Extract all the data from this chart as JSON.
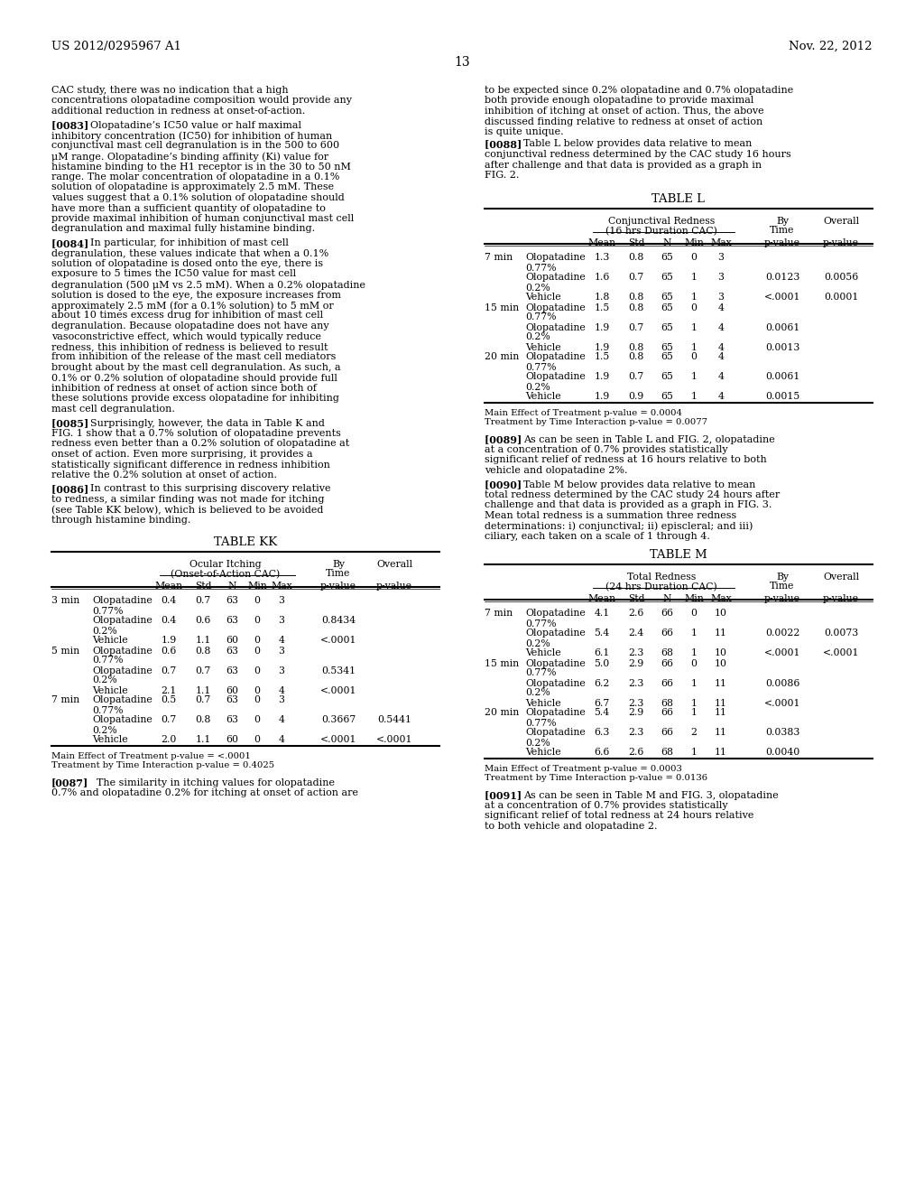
{
  "page_header_left": "US 2012/0295967 A1",
  "page_header_right": "Nov. 22, 2012",
  "page_number": "13",
  "left_col_paragraphs": [
    {
      "text": "CAC study, there was no indication that a high concentrations olopatadine composition would provide any additional reduction in redness at onset-of-action.",
      "indent": false,
      "bold_prefix": ""
    },
    {
      "text": "Olopatadine’s IC50 value or half maximal inhibitory concentration (IC50) for inhibition of human conjunctival mast cell degranulation is in the 500 to 600 μM range. Olopatadine’s binding affinity (Ki) value for histamine binding to the H1 receptor is in the 30 to 50 nM range. The molar concentration of olopatadine in a 0.1% solution of olopatadine is approximately 2.5 mM. These values suggest that a 0.1% solution of olopatadine should have more than a sufficient quantity of olopatadine to provide maximal inhibition of human conjunctival mast cell degranulation and maximal fully histamine binding.",
      "indent": true,
      "bold_prefix": "[0083]"
    },
    {
      "text": "In particular, for inhibition of mast cell degranulation, these values indicate that when a 0.1% solution of olopatadine is dosed onto the eye, there is exposure to 5 times the IC50 value for mast cell degranulation (500 μM vs 2.5 mM). When a 0.2% olopatadine solution is dosed to the eye, the exposure increases from approximately 2.5 mM (for a 0.1% solution) to 5 mM or about 10 times excess drug for inhibition of mast cell degranulation. Because olopatadine does not have any vasoconstrictive effect, which would typically reduce redness, this inhibition of redness is believed to result from inhibition of the release of the mast cell mediators brought about by the mast cell degranulation. As such, a 0.1% or 0.2% solution of olopatadine should provide full inhibition of redness at onset of action since both of these solutions provide excess olopatadine for inhibiting mast cell degranulation.",
      "indent": true,
      "bold_prefix": "[0084]"
    },
    {
      "text": "Surprisingly, however, the data in Table K and FIG. 1 show that a 0.7% solution of olopatadine prevents redness even better than a 0.2% solution of olopatadine at onset of action. Even more surprising, it provides a statistically significant difference in redness inhibition relative the 0.2% solution at onset of action.",
      "indent": true,
      "bold_prefix": "[0085]"
    },
    {
      "text": "In contrast to this surprising discovery relative to redness, a similar finding was not made for itching (see Table KK below), which is believed to be avoided through histamine binding.",
      "indent": true,
      "bold_prefix": "[0086]"
    }
  ],
  "right_col_paragraphs": [
    {
      "text": "to be expected since 0.2% olopatadine and 0.7% olopatadine both provide enough olopatadine to provide maximal inhibition of itching at onset of action. Thus, the above discussed finding relative to redness at onset of action is quite unique.",
      "indent": false,
      "bold_prefix": ""
    },
    {
      "text": "Table L below provides data relative to mean conjunctival redness determined by the CAC study 16 hours after challenge and that data is provided as a graph in FIG. 2.",
      "indent": true,
      "bold_prefix": "[0088]"
    }
  ],
  "table_kk": {
    "title": "TABLE KK",
    "group_header": "Ocular Itching",
    "group_subheader": "(Onset-of-Action CAC)",
    "by_time_label": "By\nTime",
    "overall_label": "Overall",
    "col_headers": [
      "Mean",
      "Std",
      "N",
      "Min",
      "Max",
      "p-value",
      "p-value"
    ],
    "rows": [
      [
        "3 min",
        "Olopatadine",
        "0.77%",
        "0.4",
        "0.7",
        "63",
        "0",
        "3",
        "",
        ""
      ],
      [
        "",
        "Olopatadine",
        "0.2%",
        "0.4",
        "0.6",
        "63",
        "0",
        "3",
        "0.8434",
        ""
      ],
      [
        "",
        "Vehicle",
        "",
        "1.9",
        "1.1",
        "60",
        "0",
        "4",
        "<.0001",
        ""
      ],
      [
        "5 min",
        "Olopatadine",
        "0.77%",
        "0.6",
        "0.8",
        "63",
        "0",
        "3",
        "",
        ""
      ],
      [
        "",
        "Olopatadine",
        "0.2%",
        "0.7",
        "0.7",
        "63",
        "0",
        "3",
        "0.5341",
        ""
      ],
      [
        "",
        "Vehicle",
        "",
        "2.1",
        "1.1",
        "60",
        "0",
        "4",
        "<.0001",
        ""
      ],
      [
        "7 min",
        "Olopatadine",
        "0.77%",
        "0.5",
        "0.7",
        "63",
        "0",
        "3",
        "",
        ""
      ],
      [
        "",
        "Olopatadine",
        "0.2%",
        "0.7",
        "0.8",
        "63",
        "0",
        "4",
        "0.3667",
        "0.5441"
      ],
      [
        "",
        "Vehicle",
        "",
        "2.0",
        "1.1",
        "60",
        "0",
        "4",
        "<.0001",
        "<.0001"
      ]
    ],
    "footnote1": "Main Effect of Treatment p-value = <.0001",
    "footnote2": "Treatment by Time Interaction p-value = 0.4025"
  },
  "para_0087": "[0087]   The similarity in itching values for olopatadine 0.7% and olopatadine 0.2% for itching at onset of action are",
  "table_l": {
    "title": "TABLE L",
    "group_header": "Conjunctival Redness",
    "group_subheader": "(16 hrs Duration CAC)",
    "by_time_label": "By\nTime",
    "overall_label": "Overall",
    "col_headers": [
      "Mean",
      "Std",
      "N",
      "Min",
      "Max",
      "p-value",
      "p-value"
    ],
    "rows": [
      [
        "7 min",
        "Olopatadine",
        "0.77%",
        "1.3",
        "0.8",
        "65",
        "0",
        "3",
        "",
        ""
      ],
      [
        "",
        "Olopatadine",
        "0.2%",
        "1.6",
        "0.7",
        "65",
        "1",
        "3",
        "0.0123",
        "0.0056"
      ],
      [
        "",
        "Vehicle",
        "",
        "1.8",
        "0.8",
        "65",
        "1",
        "3",
        "<.0001",
        "0.0001"
      ],
      [
        "15 min",
        "Olopatadine",
        "0.77%",
        "1.5",
        "0.8",
        "65",
        "0",
        "4",
        "",
        ""
      ],
      [
        "",
        "Olopatadine",
        "0.2%",
        "1.9",
        "0.7",
        "65",
        "1",
        "4",
        "0.0061",
        ""
      ],
      [
        "",
        "Vehicle",
        "",
        "1.9",
        "0.8",
        "65",
        "1",
        "4",
        "0.0013",
        ""
      ],
      [
        "20 min",
        "Olopatadine",
        "0.77%",
        "1.5",
        "0.8",
        "65",
        "0",
        "4",
        "",
        ""
      ],
      [
        "",
        "Olopatadine",
        "0.2%",
        "1.9",
        "0.7",
        "65",
        "1",
        "4",
        "0.0061",
        ""
      ],
      [
        "",
        "Vehicle",
        "",
        "1.9",
        "0.9",
        "65",
        "1",
        "4",
        "0.0015",
        ""
      ]
    ],
    "footnote1": "Main Effect of Treatment p-value = 0.0004",
    "footnote2": "Treatment by Time Interaction p-value = 0.0077"
  },
  "para_0089": "[0089]   As can be seen in Table L and FIG. 2, olopatadine at a concentration of 0.7% provides statistically significant relief of redness at 16 hours relative to both vehicle and olopatadine 2%.",
  "para_0090": "[0090]   Table M below provides data relative to mean total redness determined by the CAC study 24 hours after challenge and that data is provided as a graph in FIG. 3. Mean total redness is a summation three redness determinations: i) conjunctival; ii) episcleral; and iii) ciliary, each taken on a scale of 1 through 4.",
  "table_m": {
    "title": "TABLE M",
    "group_header": "Total Redness",
    "group_subheader": "(24 hrs Duration CAC)",
    "by_time_label": "By\nTime",
    "overall_label": "Overall",
    "col_headers": [
      "Mean",
      "Std",
      "N",
      "Min",
      "Max",
      "p-value",
      "p-value"
    ],
    "rows": [
      [
        "7 min",
        "Olopatadine",
        "0.77%",
        "4.1",
        "2.6",
        "66",
        "0",
        "10",
        "",
        ""
      ],
      [
        "",
        "Olopatadine",
        "0.2%",
        "5.4",
        "2.4",
        "66",
        "1",
        "11",
        "0.0022",
        "0.0073"
      ],
      [
        "",
        "Vehicle",
        "",
        "6.1",
        "2.3",
        "68",
        "1",
        "10",
        "<.0001",
        "<.0001"
      ],
      [
        "15 min",
        "Olopatadine",
        "0.77%",
        "5.0",
        "2.9",
        "66",
        "0",
        "10",
        "",
        ""
      ],
      [
        "",
        "Olopatadine",
        "0.2%",
        "6.2",
        "2.3",
        "66",
        "1",
        "11",
        "0.0086",
        ""
      ],
      [
        "",
        "Vehicle",
        "",
        "6.7",
        "2.3",
        "68",
        "1",
        "11",
        "<.0001",
        ""
      ],
      [
        "20 min",
        "Olopatadine",
        "0.77%",
        "5.4",
        "2.9",
        "66",
        "1",
        "11",
        "",
        ""
      ],
      [
        "",
        "Olopatadine",
        "0.2%",
        "6.3",
        "2.3",
        "66",
        "2",
        "11",
        "0.0383",
        ""
      ],
      [
        "",
        "Vehicle",
        "",
        "6.6",
        "2.6",
        "68",
        "1",
        "11",
        "0.0040",
        ""
      ]
    ],
    "footnote1": "Main Effect of Treatment p-value = 0.0003",
    "footnote2": "Treatment by Time Interaction p-value = 0.0136"
  },
  "para_0091": "[0091]   As can be seen in Table M and FIG. 3, olopatadine at a concentration of 0.7% provides statistically significant relief of total redness at 24 hours relative to both vehicle and olopatadine 2."
}
